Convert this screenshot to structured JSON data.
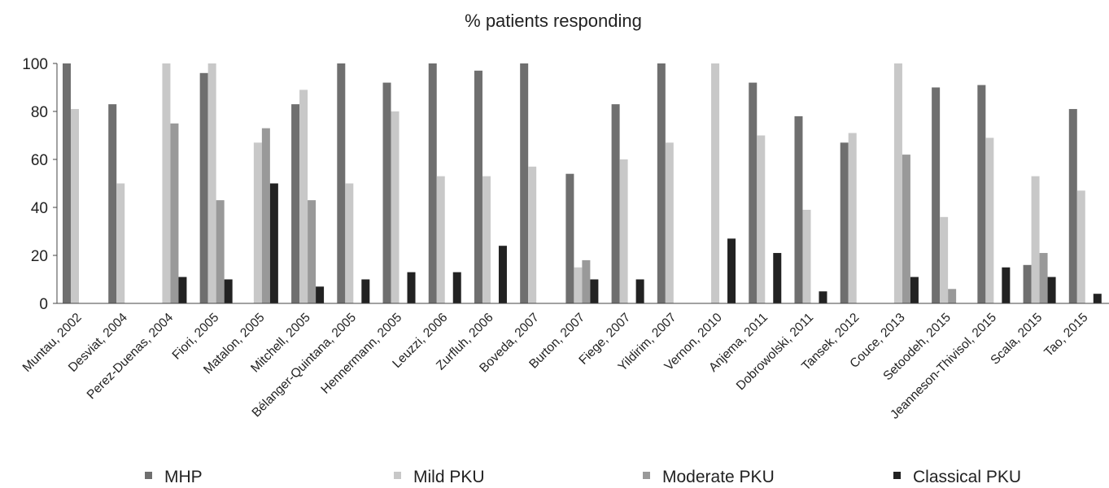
{
  "chart_data": {
    "type": "bar",
    "title": "% patients responding",
    "xlabel": "",
    "ylabel": "",
    "ylim": [
      0,
      100
    ],
    "yticks": [
      0,
      20,
      40,
      60,
      80,
      100
    ],
    "grid": false,
    "legend_position": "bottom",
    "categories": [
      "Muntau, 2002",
      "Desviat, 2004",
      "Perez-Duenas, 2004",
      "Fiori, 2005",
      "Matalon, 2005",
      "Mitchell, 2005",
      "Bélanger-Quintana, 2005",
      "Hennermann, 2005",
      "Leuzzi, 2006",
      "Zurfluh, 2006",
      "Boveda, 2007",
      "Burton, 2007",
      "Fiege, 2007",
      "Yildirim, 2007",
      "Vernon, 2010",
      "Anjema, 2011",
      "Dobrowolski, 2011",
      "Tansek, 2012",
      "Couce, 2013",
      "Setoodeh, 2015",
      "Jeanneson-Thivisol, 2015",
      "Scala, 2015",
      "Tao, 2015"
    ],
    "series": [
      {
        "name": "MHP",
        "color": "#6f6f6f",
        "values": [
          100,
          83,
          null,
          96,
          null,
          83,
          100,
          92,
          100,
          97,
          100,
          54,
          83,
          100,
          null,
          92,
          78,
          67,
          null,
          90,
          91,
          16,
          81
        ]
      },
      {
        "name": "Mild PKU",
        "color": "#c8c8c8",
        "values": [
          81,
          50,
          100,
          100,
          67,
          89,
          50,
          80,
          53,
          53,
          57,
          15,
          60,
          67,
          100,
          70,
          39,
          71,
          100,
          36,
          69,
          53,
          47
        ]
      },
      {
        "name": "Moderate PKU",
        "color": "#999999",
        "values": [
          null,
          null,
          75,
          43,
          73,
          43,
          null,
          null,
          null,
          null,
          null,
          18,
          null,
          null,
          null,
          null,
          null,
          null,
          62,
          6,
          null,
          21,
          null
        ]
      },
      {
        "name": "Classical PKU",
        "color": "#222222",
        "values": [
          null,
          null,
          11,
          10,
          50,
          7,
          10,
          13,
          13,
          24,
          null,
          10,
          10,
          null,
          27,
          21,
          5,
          null,
          11,
          null,
          15,
          11,
          4
        ]
      }
    ]
  }
}
